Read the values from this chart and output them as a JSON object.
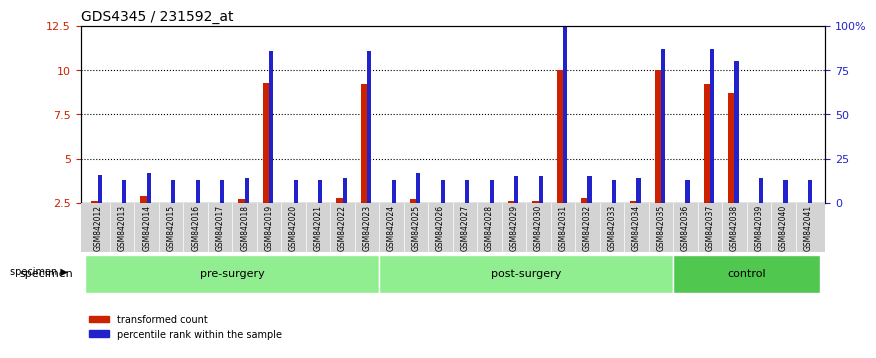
{
  "title": "GDS4345 / 231592_at",
  "samples": [
    "GSM842012",
    "GSM842013",
    "GSM842014",
    "GSM842015",
    "GSM842016",
    "GSM842017",
    "GSM842018",
    "GSM842019",
    "GSM842020",
    "GSM842021",
    "GSM842022",
    "GSM842023",
    "GSM842024",
    "GSM842025",
    "GSM842026",
    "GSM842027",
    "GSM842028",
    "GSM842029",
    "GSM842030",
    "GSM842031",
    "GSM842032",
    "GSM842033",
    "GSM842034",
    "GSM842035",
    "GSM842036",
    "GSM842037",
    "GSM842038",
    "GSM842039",
    "GSM842040",
    "GSM842041"
  ],
  "red_values": [
    2.6,
    2.5,
    2.9,
    2.5,
    2.5,
    2.5,
    2.7,
    9.3,
    2.5,
    2.5,
    2.8,
    9.2,
    2.5,
    2.7,
    2.5,
    2.5,
    2.5,
    2.6,
    2.6,
    10.0,
    2.8,
    2.5,
    2.6,
    10.0,
    2.5,
    9.2,
    8.7,
    2.5,
    2.5,
    2.5
  ],
  "blue_values": [
    16,
    13,
    17,
    13,
    13,
    13,
    14,
    86,
    13,
    13,
    14,
    86,
    13,
    17,
    13,
    13,
    13,
    15,
    15,
    100,
    15,
    13,
    14,
    87,
    13,
    87,
    80,
    14,
    13,
    13
  ],
  "groups": [
    {
      "label": "pre-surgery",
      "start": 0,
      "end": 11,
      "color": "#90ee90"
    },
    {
      "label": "post-surgery",
      "start": 12,
      "end": 23,
      "color": "#90ee90"
    },
    {
      "label": "control",
      "start": 24,
      "end": 29,
      "color": "#50c850"
    }
  ],
  "ylim_left": [
    2.5,
    12.5
  ],
  "ylim_right": [
    0,
    100
  ],
  "yticks_left": [
    2.5,
    5.0,
    7.5,
    10.0,
    12.5
  ],
  "yticks_right": [
    0,
    25,
    50,
    75,
    100
  ],
  "ytick_labels_left": [
    "2.5",
    "5",
    "7.5",
    "10",
    "12.5"
  ],
  "ytick_labels_right": [
    "0",
    "25",
    "50",
    "75",
    "100%"
  ],
  "red_color": "#cc2200",
  "blue_color": "#2222cc",
  "bg_color": "#d3d3d3",
  "group_bar_color": "#b0b0b0",
  "grid_color": "#000000",
  "bar_width": 0.35,
  "legend_transformed": "transformed count",
  "legend_percentile": "percentile rank within the sample",
  "specimen_label": "specimen"
}
